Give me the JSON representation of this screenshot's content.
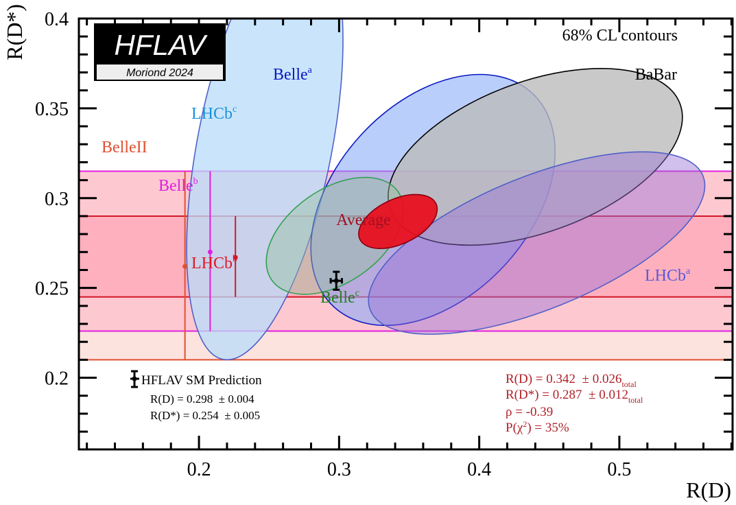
{
  "chart_data": {
    "type": "scatter",
    "title": "",
    "xlabel": "R(D)",
    "ylabel": "R(D*)",
    "xlim": [
      0.1143,
      0.5808
    ],
    "ylim": [
      0.1601,
      0.4
    ],
    "x_ticks": [
      0.2,
      0.3,
      0.4,
      0.5
    ],
    "x_tick_labels": [
      "0.2",
      "0.3",
      "0.4",
      "0.5"
    ],
    "y_ticks": [
      0.2,
      0.25,
      0.3,
      0.35,
      0.4
    ],
    "y_tick_labels": [
      "0.2",
      "0.25",
      "0.3",
      "0.35",
      "0.4"
    ],
    "legend_title": "68% CL contours",
    "logo": {
      "main": "HFLAV",
      "sub": "Moriond 2024"
    },
    "bands": [
      {
        "name": "BelleII",
        "ymin": 0.21,
        "ymax": 0.315,
        "point": [
          0.19,
          0.262
        ],
        "fill": "#fbd0c8",
        "line": "#e05030",
        "label_color": "#e05030"
      },
      {
        "name": "Belle^b",
        "ymin": 0.226,
        "ymax": 0.315,
        "point": [
          0.208,
          0.27
        ],
        "fill": "#ffb6c8",
        "line": "#e020e0",
        "label_color": "#e020e0"
      },
      {
        "name": "LHCb^b",
        "ymin": 0.245,
        "ymax": 0.29,
        "point": [
          0.226,
          0.267
        ],
        "fill": "#ffa0b0",
        "line": "#d01828",
        "label_color": "#e01828"
      }
    ],
    "ellipses": [
      {
        "name": "LHCb^c",
        "cx": 0.247,
        "cy": 0.33,
        "rx": 0.048,
        "ry": 0.122,
        "angle_deg": 11,
        "fill": "#b8dcfa",
        "opacity": 0.75,
        "stroke": "#5060c8",
        "label_color": "#1a90d8"
      },
      {
        "name": "Belle^a",
        "cx": 0.367,
        "cy": 0.299,
        "rx": 0.104,
        "ry": 0.054,
        "angle_deg": -47,
        "fill": "#7fa6f8",
        "opacity": 0.55,
        "stroke": "#0a18c0",
        "label_color": "#0a18c0"
      },
      {
        "name": "BaBar",
        "cx": 0.44,
        "cy": 0.323,
        "rx": 0.11,
        "ry": 0.042,
        "angle_deg": -20,
        "fill": "#bcbcbc",
        "opacity": 0.8,
        "stroke": "#000000",
        "label_color": "#000000"
      },
      {
        "name": "LHCb^a",
        "cx": 0.441,
        "cy": 0.275,
        "rx": 0.128,
        "ry": 0.037,
        "angle_deg": -22,
        "fill": "#9870d8",
        "opacity": 0.45,
        "stroke": "#5060c8",
        "label_color": "#5a5ad8"
      },
      {
        "name": "Belle^c",
        "cx": 0.297,
        "cy": 0.279,
        "rx": 0.055,
        "ry": 0.026,
        "angle_deg": -35,
        "fill": "#94c0a0",
        "opacity": 0.45,
        "stroke": "#30a050",
        "label_color": "#208020"
      },
      {
        "name": "Average",
        "cx": 0.342,
        "cy": 0.287,
        "rx": 0.03,
        "ry": 0.0125,
        "angle_deg": -25,
        "fill": "#e81020",
        "opacity": 0.95,
        "stroke": "#8a0010",
        "label_color": "#a01020"
      }
    ],
    "sm_prediction": {
      "label": "HFLAV SM Prediction",
      "rd": 0.298,
      "rd_err": 0.004,
      "rds": 0.254,
      "rds_err": 0.005
    },
    "sm_text": {
      "rd": "R(D) = 0.298  ± 0.004",
      "rds": "R(D*) = 0.254  ± 0.005"
    },
    "average_text": {
      "rd": "R(D) = 0.342  ± 0.026",
      "rds": "R(D*) = 0.287  ± 0.012",
      "sub": "total",
      "rho": "ρ = -0.39",
      "pchi2_prefix": "P(χ",
      "pchi2_sup": "2",
      "pchi2_suffix": ") = 35%"
    },
    "labels": {
      "babar": "BaBar",
      "belle_a": "Belle",
      "belle_a_sup": "a",
      "lhcb_c": "LHCb",
      "lhcb_c_sup": "c",
      "belleii": "BelleII",
      "belle_b": "Belle",
      "belle_b_sup": "b",
      "lhcb_b": "LHCb",
      "lhcb_b_sup": "b",
      "belle_c": "Belle",
      "belle_c_sup": "c",
      "lhcb_a": "LHCb",
      "lhcb_a_sup": "a",
      "average": "Average"
    }
  }
}
